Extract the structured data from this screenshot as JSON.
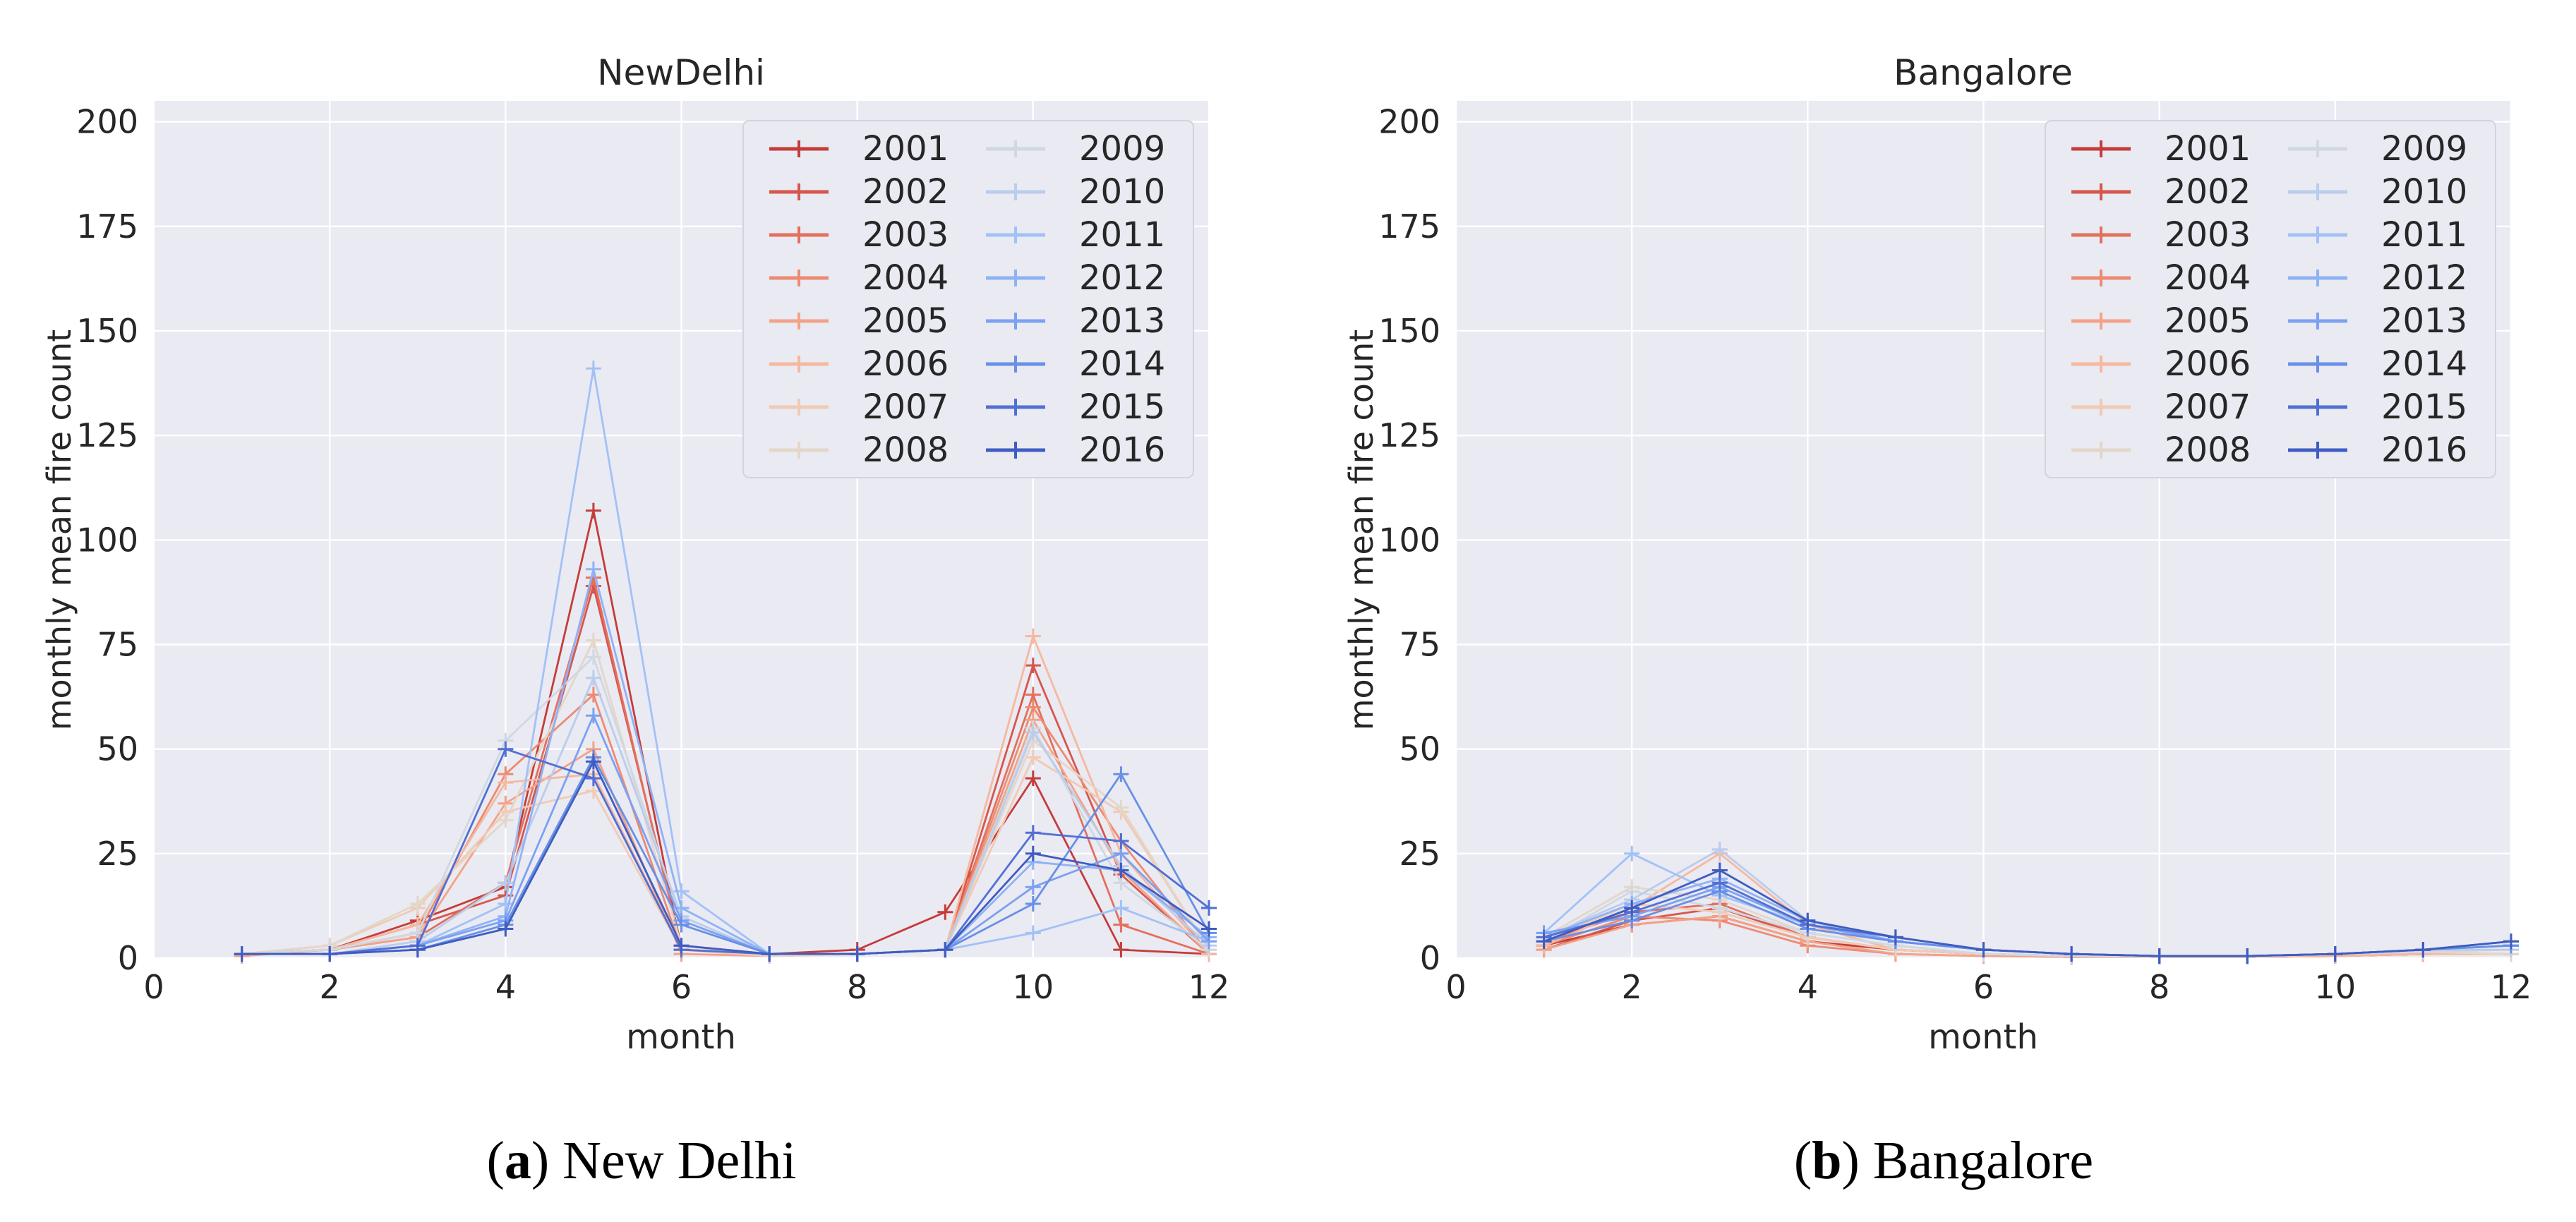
{
  "figure": {
    "background": "#ffffff",
    "axes_background": "#eaeaf2",
    "grid_color": "#ffffff",
    "text_color": "#262626",
    "years": [
      "2001",
      "2002",
      "2003",
      "2004",
      "2005",
      "2006",
      "2007",
      "2008",
      "2009",
      "2010",
      "2011",
      "2012",
      "2013",
      "2014",
      "2015",
      "2016"
    ]
  },
  "chart_data": [
    {
      "type": "line",
      "title": "NewDelhi",
      "xlabel": "month",
      "ylabel": "monthly mean fire count",
      "x": [
        1,
        2,
        3,
        4,
        5,
        6,
        7,
        8,
        9,
        10,
        11,
        12
      ],
      "xlim": [
        0,
        12
      ],
      "ylim": [
        0,
        205
      ],
      "x_ticks": [
        0,
        2,
        4,
        6,
        8,
        10,
        12
      ],
      "y_ticks": [
        0,
        25,
        50,
        75,
        100,
        125,
        150,
        175,
        200
      ],
      "grid": true,
      "legend_position": "upper right",
      "legend_columns": 2,
      "marker": "plus",
      "series": [
        {
          "name": "2001",
          "color": "#c43c39",
          "values": [
            1,
            2,
            9,
            17,
            107,
            2,
            1,
            2,
            11,
            43,
            2,
            1
          ]
        },
        {
          "name": "2002",
          "color": "#d6564c",
          "values": [
            1,
            2,
            8,
            15,
            89,
            3,
            1,
            1,
            2,
            70,
            20,
            1
          ]
        },
        {
          "name": "2003",
          "color": "#e3705c",
          "values": [
            1,
            2,
            5,
            18,
            91,
            2,
            1,
            1,
            2,
            63,
            8,
            1
          ]
        },
        {
          "name": "2004",
          "color": "#ee8a70",
          "values": [
            1,
            2,
            6,
            44,
            63,
            2,
            1,
            1,
            2,
            60,
            28,
            1
          ]
        },
        {
          "name": "2005",
          "color": "#f4a286",
          "values": [
            0.5,
            2,
            5,
            37,
            50,
            1,
            0.5,
            1,
            2,
            57,
            21,
            1
          ]
        },
        {
          "name": "2006",
          "color": "#f6b89e",
          "values": [
            1,
            2,
            8,
            42,
            44,
            2,
            0.5,
            1,
            2,
            77,
            25,
            1
          ]
        },
        {
          "name": "2007",
          "color": "#f1cab4",
          "values": [
            1,
            3,
            12,
            35,
            40,
            2,
            0.5,
            1,
            2,
            48,
            35,
            2
          ]
        },
        {
          "name": "2008",
          "color": "#e4d6c8",
          "values": [
            1,
            3,
            13,
            33,
            76,
            3,
            0.5,
            1,
            2,
            52,
            36,
            2
          ]
        },
        {
          "name": "2009",
          "color": "#d0d8e2",
          "values": [
            1,
            2,
            6,
            52,
            72,
            9,
            1,
            1,
            2,
            55,
            18,
            2
          ]
        },
        {
          "name": "2010",
          "color": "#b9cdec",
          "values": [
            1,
            1,
            4,
            18,
            67,
            10,
            1,
            1,
            2,
            54,
            22,
            3
          ]
        },
        {
          "name": "2011",
          "color": "#a2c1f7",
          "values": [
            1,
            1,
            3,
            13,
            141,
            16,
            1,
            1,
            2,
            6,
            12,
            4
          ]
        },
        {
          "name": "2012",
          "color": "#8fb2f6",
          "values": [
            1,
            1,
            3,
            10,
            93,
            12,
            1,
            1,
            2,
            23,
            21,
            5
          ]
        },
        {
          "name": "2013",
          "color": "#7ca1f1",
          "values": [
            1,
            1,
            3,
            9,
            58,
            9,
            1,
            1,
            2,
            17,
            25,
            4
          ]
        },
        {
          "name": "2014",
          "color": "#6890e6",
          "values": [
            1,
            1,
            2,
            8,
            48,
            8,
            1,
            1,
            2,
            13,
            44,
            6
          ]
        },
        {
          "name": "2015",
          "color": "#526fd4",
          "values": [
            1,
            1,
            3,
            50,
            43,
            2,
            1,
            1,
            2,
            30,
            28,
            12
          ]
        },
        {
          "name": "2016",
          "color": "#3f5cc0",
          "values": [
            1,
            1,
            2,
            7,
            47,
            3,
            1,
            1,
            2,
            25,
            21,
            7
          ]
        }
      ]
    },
    {
      "type": "line",
      "title": "Bangalore",
      "xlabel": "month",
      "ylabel": "monthly mean fire count",
      "x": [
        1,
        2,
        3,
        4,
        5,
        6,
        7,
        8,
        9,
        10,
        11,
        12
      ],
      "xlim": [
        0,
        12
      ],
      "ylim": [
        0,
        205
      ],
      "x_ticks": [
        0,
        2,
        4,
        6,
        8,
        10,
        12
      ],
      "y_ticks": [
        0,
        25,
        50,
        75,
        100,
        125,
        150,
        175,
        200
      ],
      "grid": true,
      "legend_position": "upper right",
      "legend_columns": 2,
      "marker": "plus",
      "series": [
        {
          "name": "2001",
          "color": "#c43c39",
          "values": [
            3,
            8,
            10,
            4,
            2,
            1,
            0.5,
            0.3,
            0.3,
            0.5,
            1,
            1
          ]
        },
        {
          "name": "2002",
          "color": "#d6564c",
          "values": [
            2,
            9,
            12,
            5,
            2,
            1,
            0.5,
            0.3,
            0.3,
            0.5,
            1,
            1
          ]
        },
        {
          "name": "2003",
          "color": "#e3705c",
          "values": [
            4,
            11,
            13,
            5,
            2,
            1,
            0.5,
            0.3,
            0.3,
            0.5,
            1,
            1
          ]
        },
        {
          "name": "2004",
          "color": "#ee8a70",
          "values": [
            3,
            10,
            9,
            3,
            1,
            0.5,
            0.3,
            0.3,
            0.3,
            0.5,
            1,
            1
          ]
        },
        {
          "name": "2005",
          "color": "#f4a286",
          "values": [
            2,
            8,
            10,
            4,
            1,
            0.5,
            0.3,
            0.3,
            0.3,
            0.5,
            1,
            1
          ]
        },
        {
          "name": "2006",
          "color": "#f6b89e",
          "values": [
            3,
            12,
            25,
            8,
            2,
            1,
            0.5,
            0.3,
            0.3,
            0.5,
            1,
            1
          ]
        },
        {
          "name": "2007",
          "color": "#f1cab4",
          "values": [
            4,
            13,
            11,
            5,
            2,
            1,
            0.5,
            0.3,
            0.3,
            1,
            1.5,
            1
          ]
        },
        {
          "name": "2008",
          "color": "#e4d6c8",
          "values": [
            5,
            17,
            14,
            6,
            3,
            1,
            0.5,
            0.3,
            0.3,
            1,
            1.5,
            1
          ]
        },
        {
          "name": "2009",
          "color": "#d0d8e2",
          "values": [
            4,
            16,
            12,
            6,
            3,
            1,
            0.5,
            0.5,
            0.5,
            1,
            1.5,
            2
          ]
        },
        {
          "name": "2010",
          "color": "#b9cdec",
          "values": [
            5,
            14,
            26,
            9,
            4,
            2,
            1,
            0.5,
            0.5,
            1,
            2,
            2
          ]
        },
        {
          "name": "2011",
          "color": "#a2c1f7",
          "values": [
            6,
            25,
            15,
            8,
            4,
            2,
            1,
            0.5,
            0.5,
            1,
            2,
            3
          ]
        },
        {
          "name": "2012",
          "color": "#8fb2f6",
          "values": [
            5,
            13,
            19,
            9,
            4,
            2,
            1,
            0.5,
            0.5,
            1,
            2,
            3
          ]
        },
        {
          "name": "2013",
          "color": "#7ca1f1",
          "values": [
            6,
            10,
            17,
            8,
            4,
            2,
            1,
            0.5,
            0.5,
            1,
            2,
            3
          ]
        },
        {
          "name": "2014",
          "color": "#6890e6",
          "values": [
            4,
            9,
            16,
            7,
            4,
            2,
            1,
            0.5,
            0.5,
            1,
            2,
            3
          ]
        },
        {
          "name": "2015",
          "color": "#526fd4",
          "values": [
            5,
            11,
            18,
            8,
            5,
            2,
            1,
            0.5,
            0.5,
            1,
            2,
            4
          ]
        },
        {
          "name": "2016",
          "color": "#3f5cc0",
          "values": [
            4,
            12,
            21,
            9,
            5,
            2,
            1,
            0.5,
            0.5,
            1,
            2,
            4
          ]
        }
      ]
    }
  ],
  "captions": [
    {
      "open": "(",
      "letter": "a",
      "close": ") ",
      "text": "New Delhi"
    },
    {
      "open": "(",
      "letter": "b",
      "close": ") ",
      "text": "Bangalore"
    }
  ]
}
